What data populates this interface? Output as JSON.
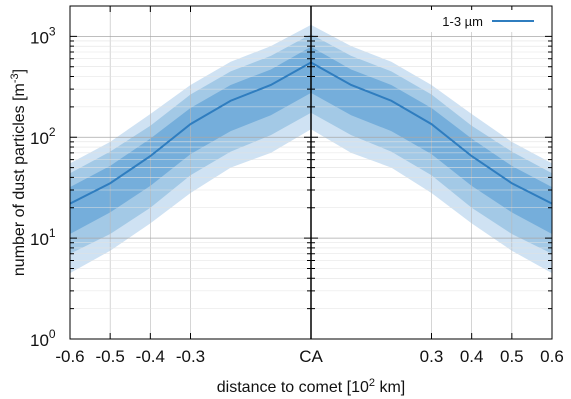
{
  "chart_data": {
    "type": "area",
    "title": "",
    "xlabel": {
      "pre": "distance to comet [10",
      "sup": "2",
      "post": " km]"
    },
    "ylabel": {
      "pre": "number of dust particles [m",
      "sup": "-3",
      "post": "]"
    },
    "y_scale": "log",
    "xlim": [
      -0.6,
      0.6
    ],
    "ylim": [
      1,
      2000
    ],
    "grid": true,
    "legend_position": "top-right",
    "x_tick_labels": [
      {
        "x": -0.6,
        "label": "-0.6"
      },
      {
        "x": -0.5,
        "label": "-0.5"
      },
      {
        "x": -0.4,
        "label": "-0.4"
      },
      {
        "x": -0.3,
        "label": "-0.3"
      },
      {
        "x": 0.0,
        "label": "CA"
      },
      {
        "x": 0.3,
        "label": "0.3"
      },
      {
        "x": 0.4,
        "label": "0.4"
      },
      {
        "x": 0.5,
        "label": "0.5"
      },
      {
        "x": 0.6,
        "label": "0.6"
      }
    ],
    "y_tick_labels": [
      {
        "y": 1,
        "base": "10",
        "exp": "0"
      },
      {
        "y": 10,
        "base": "10",
        "exp": "1"
      },
      {
        "y": 100,
        "base": "10",
        "exp": "2"
      },
      {
        "y": 1000,
        "base": "10",
        "exp": "3"
      }
    ],
    "x": [
      -0.6,
      -0.5,
      -0.4,
      -0.3,
      -0.2,
      -0.1,
      0.0,
      0.1,
      0.2,
      0.3,
      0.4,
      0.5,
      0.6
    ],
    "series": [
      {
        "name": "1-3 µm",
        "color": "#2f7dbf",
        "values": [
          22,
          35,
          65,
          135,
          230,
          330,
          550,
          330,
          230,
          135,
          65,
          35,
          22
        ]
      }
    ],
    "bands": [
      {
        "level": "outer",
        "color": "#cfe2f3",
        "low": [
          4.5,
          7.5,
          14,
          28,
          50,
          70,
          120,
          70,
          50,
          28,
          14,
          7.5,
          4.5
        ],
        "high": [
          55,
          90,
          170,
          330,
          560,
          800,
          1300,
          800,
          560,
          330,
          170,
          90,
          55
        ]
      },
      {
        "level": "middle",
        "color": "#a3c9e6",
        "low": [
          7,
          11,
          20,
          42,
          72,
          105,
          175,
          105,
          72,
          42,
          20,
          11,
          7
        ],
        "high": [
          44,
          72,
          130,
          265,
          450,
          640,
          1050,
          640,
          450,
          265,
          130,
          72,
          44
        ]
      },
      {
        "level": "inner",
        "color": "#75aedb",
        "low": [
          11,
          18,
          33,
          68,
          115,
          165,
          275,
          165,
          115,
          68,
          33,
          18,
          11
        ],
        "high": [
          32,
          52,
          97,
          195,
          330,
          470,
          790,
          470,
          330,
          195,
          97,
          52,
          32
        ]
      }
    ]
  }
}
